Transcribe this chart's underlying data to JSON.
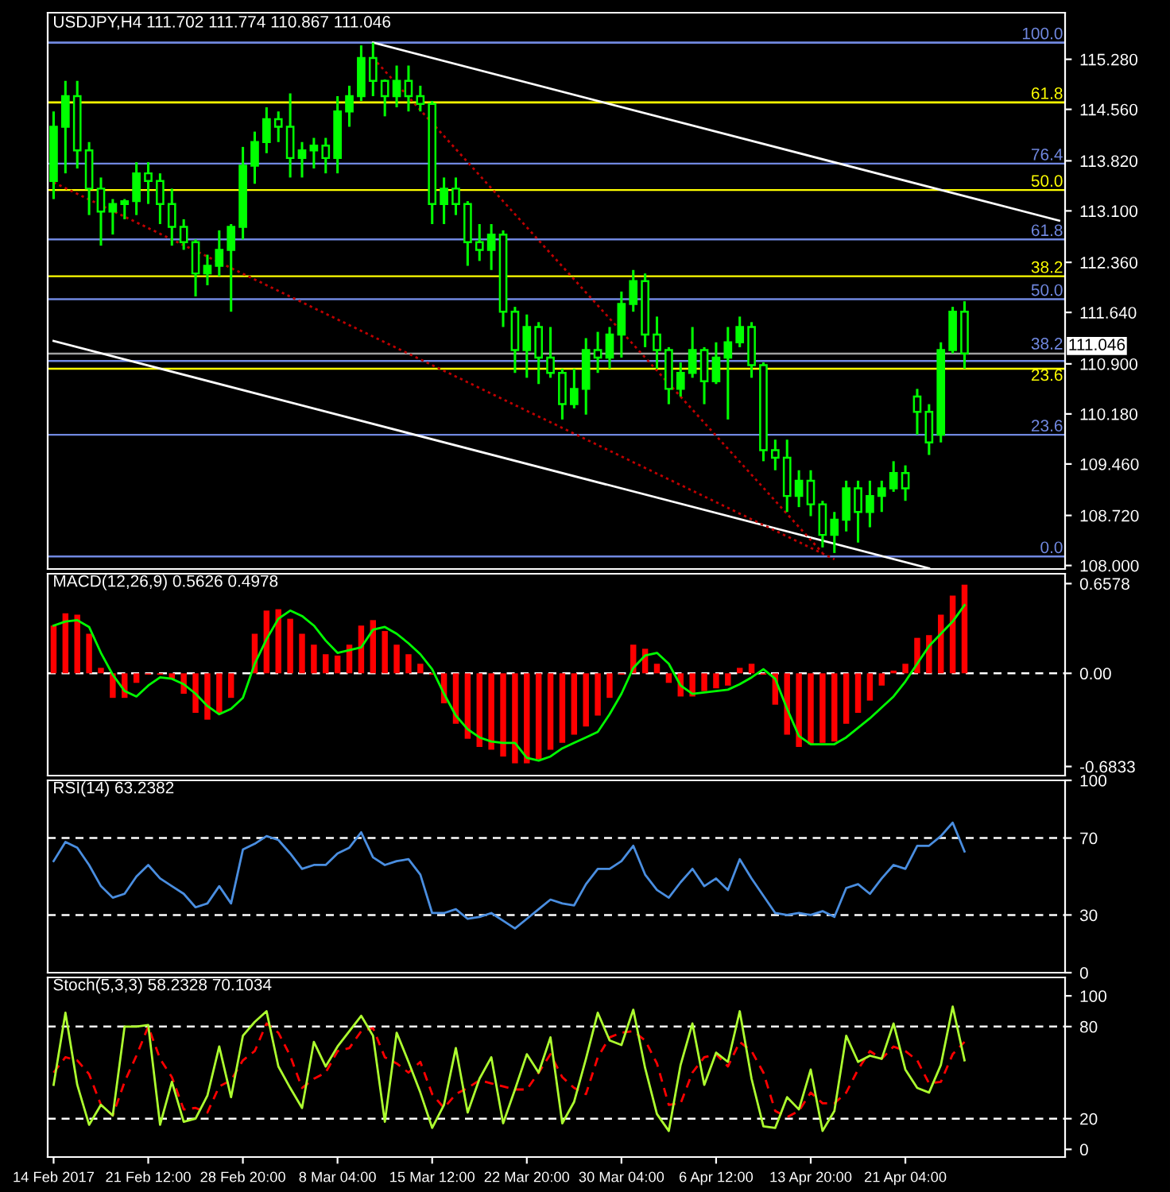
{
  "chart_data": [
    {
      "type": "candlestick",
      "title": "USDJPY,H4 111.702 111.774 110.867 111.046",
      "color": "#00ff00",
      "tick_labels": "y",
      "categories": [
        null,
        null,
        null,
        null,
        null,
        null,
        null,
        null,
        null,
        null,
        null,
        null,
        null,
        null,
        null,
        null,
        null,
        null,
        null,
        null,
        null,
        null,
        null,
        null,
        null,
        null,
        null,
        null,
        null,
        null,
        null,
        null,
        null,
        null,
        null,
        null,
        null,
        null,
        null,
        null,
        null,
        null,
        null,
        null,
        null,
        null,
        null,
        null,
        null,
        null,
        null,
        null,
        null,
        null,
        null,
        null,
        null,
        null,
        null,
        null,
        null,
        null,
        null,
        null,
        null,
        null,
        null,
        null,
        null,
        null,
        null,
        null,
        null,
        null,
        null,
        null,
        null,
        null,
        null,
        null,
        null,
        null,
        null,
        null,
        null,
        null
      ],
      "ohlc": [
        [
          113.53,
          114.53,
          113.27,
          114.31
        ],
        [
          114.31,
          114.97,
          113.64,
          114.75
        ],
        [
          114.75,
          114.97,
          113.71,
          113.97
        ],
        [
          113.97,
          114.09,
          113.04,
          113.42
        ],
        [
          113.42,
          113.58,
          112.6,
          113.09
        ],
        [
          113.09,
          113.27,
          112.76,
          113.2
        ],
        [
          113.2,
          113.27,
          112.98,
          113.24
        ],
        [
          113.24,
          113.8,
          113.04,
          113.64
        ],
        [
          113.64,
          113.8,
          113.2,
          113.53
        ],
        [
          113.53,
          113.64,
          112.91,
          113.2
        ],
        [
          113.2,
          113.42,
          112.6,
          112.87
        ],
        [
          112.87,
          112.98,
          112.54,
          112.65
        ],
        [
          112.65,
          112.69,
          111.87,
          112.2
        ],
        [
          112.2,
          112.47,
          112.03,
          112.31
        ],
        [
          112.31,
          112.82,
          112.16,
          112.54
        ],
        [
          112.54,
          112.91,
          111.65,
          112.87
        ],
        [
          112.87,
          114.02,
          112.69,
          113.75
        ],
        [
          113.75,
          114.24,
          113.49,
          114.09
        ],
        [
          114.09,
          114.59,
          113.93,
          114.42
        ],
        [
          114.42,
          114.53,
          114.09,
          114.31
        ],
        [
          114.31,
          114.79,
          113.58,
          113.86
        ],
        [
          113.86,
          114.09,
          113.58,
          113.97
        ],
        [
          113.97,
          114.15,
          113.71,
          114.04
        ],
        [
          114.04,
          114.15,
          113.64,
          113.86
        ],
        [
          113.86,
          114.75,
          113.64,
          114.53
        ],
        [
          114.53,
          114.9,
          114.31,
          114.75
        ],
        [
          114.75,
          115.48,
          114.68,
          115.3
        ],
        [
          115.3,
          115.52,
          114.75,
          114.97
        ],
        [
          114.97,
          114.99,
          114.46,
          114.75
        ],
        [
          114.75,
          115.19,
          114.59,
          114.97
        ],
        [
          114.97,
          115.19,
          114.53,
          114.75
        ],
        [
          114.75,
          114.9,
          114.53,
          114.64
        ],
        [
          114.64,
          114.68,
          112.91,
          113.2
        ],
        [
          113.2,
          113.58,
          112.91,
          113.42
        ],
        [
          113.42,
          113.58,
          113.04,
          113.2
        ],
        [
          113.2,
          113.24,
          112.31,
          112.65
        ],
        [
          112.65,
          112.91,
          112.38,
          112.54
        ],
        [
          112.54,
          112.91,
          112.25,
          112.76
        ],
        [
          112.76,
          112.82,
          111.43,
          111.65
        ],
        [
          111.65,
          111.72,
          110.77,
          111.1
        ],
        [
          111.1,
          111.61,
          110.7,
          111.43
        ],
        [
          111.43,
          111.5,
          110.61,
          110.99
        ],
        [
          110.99,
          111.43,
          110.7,
          110.77
        ],
        [
          110.77,
          110.83,
          110.1,
          110.32
        ],
        [
          110.32,
          110.83,
          110.26,
          110.54
        ],
        [
          110.54,
          111.27,
          110.17,
          111.1
        ],
        [
          111.1,
          111.36,
          110.77,
          110.99
        ],
        [
          110.99,
          111.43,
          110.83,
          111.32
        ],
        [
          111.32,
          111.94,
          110.99,
          111.76
        ],
        [
          111.76,
          112.25,
          111.65,
          112.09
        ],
        [
          112.09,
          112.2,
          111.14,
          111.32
        ],
        [
          111.32,
          111.58,
          110.83,
          111.1
        ],
        [
          111.1,
          111.14,
          110.32,
          110.54
        ],
        [
          110.54,
          110.92,
          110.43,
          110.77
        ],
        [
          110.77,
          111.43,
          110.7,
          111.1
        ],
        [
          111.1,
          111.14,
          110.32,
          110.65
        ],
        [
          110.65,
          111.21,
          110.61,
          110.99
        ],
        [
          110.99,
          111.43,
          110.1,
          111.21
        ],
        [
          111.21,
          111.58,
          111.14,
          111.43
        ],
        [
          111.43,
          111.5,
          110.7,
          110.88
        ],
        [
          110.88,
          110.92,
          109.5,
          109.66
        ],
        [
          109.66,
          109.81,
          109.37,
          109.55
        ],
        [
          109.55,
          109.81,
          108.77,
          109.0
        ],
        [
          109.0,
          109.37,
          108.84,
          109.22
        ],
        [
          109.22,
          109.37,
          108.71,
          108.88
        ],
        [
          108.88,
          108.93,
          108.26,
          108.44
        ],
        [
          108.44,
          108.77,
          108.18,
          108.66
        ],
        [
          108.66,
          109.22,
          108.49,
          109.11
        ],
        [
          109.11,
          109.22,
          108.33,
          108.77
        ],
        [
          108.77,
          109.22,
          108.55,
          109.0
        ],
        [
          109.0,
          109.22,
          108.77,
          109.11
        ],
        [
          109.11,
          109.5,
          109.06,
          109.33
        ],
        [
          109.33,
          109.44,
          108.93,
          109.11
        ],
        [
          110.43,
          110.54,
          109.88,
          110.21
        ],
        [
          110.21,
          110.32,
          109.59,
          109.77
        ],
        [
          109.88,
          111.21,
          109.77,
          111.1
        ],
        [
          111.1,
          111.72,
          111.05,
          111.65
        ],
        [
          111.65,
          111.8,
          110.83,
          111.05
        ],
        null,
        null,
        null,
        null,
        null,
        null,
        null,
        null
      ],
      "series": [
        {
          "type": "line",
          "color": "#ffffff",
          "line_style": "solid",
          "values": [
            null,
            null,
            null,
            null,
            null,
            null,
            null,
            null,
            null,
            null,
            null,
            null,
            null,
            null,
            null,
            null,
            null,
            null,
            null,
            null,
            null,
            null,
            null,
            null,
            null,
            null,
            null,
            115.52,
            null,
            null,
            null,
            null,
            null,
            null,
            null,
            null,
            null,
            null,
            null,
            null,
            null,
            null,
            null,
            null,
            null,
            null,
            null,
            null,
            null,
            null,
            null,
            null,
            null,
            null,
            null,
            null,
            null,
            null,
            null,
            null,
            null,
            null,
            null,
            null,
            null,
            null,
            null,
            null,
            null,
            null,
            null,
            null,
            null,
            null,
            null,
            null,
            null,
            null,
            null,
            null,
            null,
            null,
            null,
            null,
            null,
            112.96
          ]
        },
        {
          "type": "line",
          "color": "#ffffff",
          "line_style": "solid",
          "values": [
            111.23,
            null,
            null,
            null,
            null,
            null,
            null,
            null,
            null,
            null,
            null,
            null,
            null,
            null,
            null,
            null,
            null,
            null,
            null,
            null,
            null,
            null,
            null,
            null,
            null,
            null,
            null,
            null,
            null,
            null,
            null,
            null,
            null,
            null,
            null,
            null,
            null,
            null,
            null,
            null,
            null,
            null,
            null,
            null,
            null,
            null,
            null,
            null,
            null,
            null,
            null,
            null,
            null,
            null,
            null,
            null,
            null,
            null,
            null,
            null,
            null,
            null,
            null,
            null,
            null,
            null,
            null,
            null,
            null,
            null,
            null,
            null,
            null,
            null,
            107.96,
            null,
            null,
            null,
            null,
            null,
            null,
            null,
            null,
            null,
            null,
            null
          ]
        },
        {
          "type": "line",
          "color": "#c00000",
          "line_style": "dotted",
          "values": [
            113.51,
            null,
            null,
            null,
            null,
            null,
            null,
            null,
            null,
            null,
            null,
            null,
            null,
            null,
            null,
            null,
            null,
            null,
            null,
            null,
            null,
            null,
            null,
            null,
            null,
            null,
            null,
            null,
            null,
            null,
            null,
            null,
            null,
            null,
            null,
            null,
            null,
            null,
            null,
            null,
            null,
            null,
            null,
            null,
            null,
            null,
            null,
            null,
            null,
            null,
            null,
            null,
            null,
            null,
            null,
            null,
            null,
            null,
            null,
            null,
            null,
            null,
            null,
            null,
            null,
            null,
            108.09,
            null,
            null,
            null,
            null,
            null,
            null,
            null,
            null,
            null,
            null,
            null,
            null,
            null,
            null,
            null,
            null,
            null,
            null,
            null
          ]
        },
        {
          "type": "line",
          "color": "#c00000",
          "line_style": "dotted",
          "values": [
            null,
            null,
            null,
            null,
            null,
            null,
            null,
            null,
            null,
            null,
            null,
            null,
            null,
            null,
            null,
            null,
            null,
            null,
            null,
            null,
            null,
            null,
            null,
            null,
            null,
            null,
            null,
            115.3,
            null,
            null,
            null,
            null,
            null,
            null,
            null,
            null,
            null,
            null,
            null,
            null,
            null,
            null,
            null,
            null,
            null,
            null,
            null,
            null,
            null,
            null,
            null,
            null,
            null,
            null,
            null,
            null,
            null,
            null,
            null,
            null,
            null,
            null,
            null,
            null,
            null,
            108.18,
            null,
            null,
            null,
            null,
            null,
            null,
            null,
            null,
            null,
            null,
            null,
            null,
            null,
            null,
            null,
            null,
            null,
            null,
            null,
            null
          ]
        }
      ],
      "ylim": [
        107.95,
        115.95
      ],
      "yticks": [
        {
          "value": 115.28,
          "label": "115.280"
        },
        {
          "value": 114.56,
          "label": "114.560"
        },
        {
          "value": 113.82,
          "label": "113.820"
        },
        {
          "value": 113.1,
          "label": "113.100"
        },
        {
          "value": 112.36,
          "label": "112.360"
        },
        {
          "value": 111.64,
          "label": "111.640"
        },
        {
          "value": 110.9,
          "label": "110.900"
        },
        {
          "value": 110.18,
          "label": "110.180"
        },
        {
          "value": 109.46,
          "label": "109.460"
        },
        {
          "value": 108.72,
          "label": "108.720"
        },
        {
          "value": 108.0,
          "label": "108.000"
        }
      ],
      "ref_lines": [
        {
          "axis": "y",
          "value": 115.52,
          "color": "#7088e0"
        },
        {
          "axis": "y",
          "value": 114.66,
          "color": "#ffff00"
        },
        {
          "axis": "y",
          "value": 113.78,
          "color": "#7088e0"
        },
        {
          "axis": "y",
          "value": 113.4,
          "color": "#ffff00"
        },
        {
          "axis": "y",
          "value": 112.69,
          "color": "#7088e0"
        },
        {
          "axis": "y",
          "value": 112.16,
          "color": "#ffff00"
        },
        {
          "axis": "y",
          "value": 111.83,
          "color": "#7088e0"
        },
        {
          "axis": "y",
          "value": 110.94,
          "color": "#7088e0"
        },
        {
          "axis": "y",
          "value": 110.83,
          "color": "#ffff00"
        },
        {
          "axis": "y",
          "value": 109.88,
          "color": "#7088e0"
        },
        {
          "axis": "y",
          "value": 108.13,
          "color": "#7088e0"
        },
        {
          "axis": "y",
          "value": 111.046,
          "label": "111.046",
          "color": "#a0a0a0"
        }
      ],
      "annotations": [
        {
          "text": "100.0",
          "y": 115.52
        },
        {
          "text": "61.8",
          "y": 114.66
        },
        {
          "text": "76.4",
          "y": 113.78
        },
        {
          "text": "50.0",
          "y": 113.4
        },
        {
          "text": "61.8",
          "y": 112.69
        },
        {
          "text": "38.2",
          "y": 112.16
        },
        {
          "text": "50.0",
          "y": 111.83
        },
        {
          "text": "38.2",
          "y": 110.94
        },
        {
          "text": "23.6",
          "y": 110.83
        },
        {
          "text": "23.6",
          "y": 109.88
        },
        {
          "text": "0.0",
          "y": 108.13
        }
      ]
    },
    {
      "type": "bar",
      "title": "MACD(12,26,9) 0.5626 0.4978",
      "tick_labels": "y",
      "categories": [
        null,
        null,
        null,
        null,
        null,
        null,
        null,
        null,
        null,
        null,
        null,
        null,
        null,
        null,
        null,
        null,
        null,
        null,
        null,
        null,
        null,
        null,
        null,
        null,
        null,
        null,
        null,
        null,
        null,
        null,
        null,
        null,
        null,
        null,
        null,
        null,
        null,
        null,
        null,
        null,
        null,
        null,
        null,
        null,
        null,
        null,
        null,
        null,
        null,
        null,
        null,
        null,
        null,
        null,
        null,
        null,
        null,
        null,
        null,
        null,
        null,
        null,
        null,
        null,
        null,
        null,
        null,
        null,
        null,
        null,
        null,
        null,
        null,
        null,
        null,
        null,
        null,
        null,
        null,
        null,
        null,
        null,
        null,
        null,
        null,
        null
      ],
      "series": [
        {
          "type": "bar",
          "color": "#ff0000",
          "values": [
            0.35,
            0.44,
            0.43,
            0.29,
            0.04,
            -0.18,
            -0.18,
            -0.07,
            -0.01,
            -0.01,
            -0.04,
            -0.15,
            -0.29,
            -0.34,
            -0.29,
            -0.18,
            0.0,
            0.29,
            0.46,
            0.47,
            0.4,
            0.29,
            0.21,
            0.14,
            0.13,
            0.21,
            0.35,
            0.39,
            0.31,
            0.21,
            0.14,
            0.07,
            -0.01,
            -0.22,
            -0.37,
            -0.48,
            -0.54,
            -0.56,
            -0.61,
            -0.66,
            -0.66,
            -0.63,
            -0.56,
            -0.51,
            -0.45,
            -0.39,
            -0.31,
            -0.18,
            -0.01,
            0.21,
            0.18,
            0.07,
            -0.07,
            -0.17,
            -0.17,
            -0.13,
            -0.11,
            -0.09,
            0.04,
            0.07,
            -0.01,
            -0.23,
            -0.45,
            -0.54,
            -0.52,
            -0.51,
            -0.5,
            -0.37,
            -0.29,
            -0.2,
            -0.09,
            0.02,
            0.07,
            0.26,
            0.28,
            0.43,
            0.57,
            0.65,
            null,
            null,
            null,
            null,
            null,
            null,
            null,
            null
          ]
        },
        {
          "type": "line",
          "color": "#00ff00",
          "line_style": "solid",
          "values": [
            0.35,
            0.38,
            0.39,
            0.34,
            0.15,
            -0.01,
            -0.13,
            -0.17,
            -0.09,
            -0.03,
            -0.04,
            -0.08,
            -0.15,
            -0.24,
            -0.3,
            -0.26,
            -0.18,
            0.07,
            0.25,
            0.4,
            0.46,
            0.42,
            0.35,
            0.24,
            0.15,
            0.17,
            0.19,
            0.32,
            0.34,
            0.29,
            0.22,
            0.14,
            0.03,
            -0.15,
            -0.31,
            -0.41,
            -0.47,
            -0.5,
            -0.51,
            -0.51,
            -0.62,
            -0.64,
            -0.61,
            -0.55,
            -0.51,
            -0.47,
            -0.43,
            -0.3,
            -0.15,
            0.04,
            0.13,
            0.15,
            0.07,
            -0.09,
            -0.15,
            -0.14,
            -0.13,
            -0.12,
            -0.08,
            -0.03,
            0.03,
            -0.04,
            -0.26,
            -0.46,
            -0.52,
            -0.52,
            -0.52,
            -0.47,
            -0.4,
            -0.33,
            -0.25,
            -0.17,
            -0.06,
            0.07,
            0.2,
            0.29,
            0.38,
            0.5,
            null,
            null,
            null,
            null,
            null,
            null,
            null,
            null
          ]
        }
      ],
      "ylim": [
        -0.75,
        0.73
      ],
      "yticks": [
        0.6578,
        {
          "value": 0,
          "label": "0.00"
        },
        -0.6833
      ],
      "ref_lines": [
        {
          "axis": "y",
          "value": 0,
          "color": "#ffffff",
          "line_style": "dashed"
        }
      ]
    },
    {
      "type": "line",
      "title": "RSI(14) 63.2382",
      "tick_labels": "y",
      "categories": [
        null,
        null,
        null,
        null,
        null,
        null,
        null,
        null,
        null,
        null,
        null,
        null,
        null,
        null,
        null,
        null,
        null,
        null,
        null,
        null,
        null,
        null,
        null,
        null,
        null,
        null,
        null,
        null,
        null,
        null,
        null,
        null,
        null,
        null,
        null,
        null,
        null,
        null,
        null,
        null,
        null,
        null,
        null,
        null,
        null,
        null,
        null,
        null,
        null,
        null,
        null,
        null,
        null,
        null,
        null,
        null,
        null,
        null,
        null,
        null,
        null,
        null,
        null,
        null,
        null,
        null,
        null,
        null,
        null,
        null,
        null,
        null,
        null,
        null,
        null,
        null,
        null,
        null,
        null,
        null,
        null,
        null,
        null,
        null,
        null,
        null
      ],
      "series": [
        {
          "color": "#4a8ee0",
          "line_style": "solid",
          "values": [
            58,
            68,
            65,
            56,
            45,
            39,
            41,
            50,
            56,
            49,
            45,
            41,
            34,
            36,
            45,
            36,
            64,
            67,
            71,
            69,
            62,
            54,
            56,
            56,
            62,
            65,
            73,
            60,
            56,
            58,
            59,
            51,
            31,
            31,
            33,
            28,
            29,
            31,
            27,
            23,
            28,
            33,
            38,
            36,
            35,
            46,
            54,
            54,
            58,
            66,
            51,
            43,
            39,
            47,
            54,
            45,
            49,
            43,
            59,
            49,
            40,
            31,
            30,
            31,
            30,
            32,
            29,
            44,
            46,
            41,
            49,
            56,
            54,
            66,
            66,
            71,
            78,
            63,
            null,
            null,
            null,
            null,
            null,
            null,
            null,
            null
          ]
        }
      ],
      "ylim": [
        0,
        100
      ],
      "yticks": [
        100,
        70,
        30,
        0
      ],
      "ref_lines": [
        {
          "axis": "y",
          "value": 70,
          "color": "#ffffff",
          "line_style": "dashed"
        },
        {
          "axis": "y",
          "value": 30,
          "color": "#ffffff",
          "line_style": "dashed"
        }
      ]
    },
    {
      "type": "line",
      "title": "Stoch(5,3,3) 58.2328 70.1034",
      "categories": [
        "14 Feb 2017",
        null,
        null,
        null,
        null,
        null,
        null,
        null,
        "21 Feb 12:00",
        null,
        null,
        null,
        null,
        null,
        null,
        null,
        "28 Feb 20:00",
        null,
        null,
        null,
        null,
        null,
        null,
        null,
        "8 Mar 04:00",
        null,
        null,
        null,
        null,
        null,
        null,
        null,
        "15 Mar 12:00",
        null,
        null,
        null,
        null,
        null,
        null,
        null,
        "22 Mar 20:00",
        null,
        null,
        null,
        null,
        null,
        null,
        null,
        "30 Mar 04:00",
        null,
        null,
        null,
        null,
        null,
        null,
        null,
        "6 Apr 12:00",
        null,
        null,
        null,
        null,
        null,
        null,
        null,
        "13 Apr 20:00",
        null,
        null,
        null,
        null,
        null,
        null,
        null,
        "21 Apr 04:00",
        null,
        null,
        null,
        null,
        null,
        null,
        null,
        null,
        null,
        null,
        null,
        null,
        null
      ],
      "series": [
        {
          "color": "#ff0000",
          "line_style": "dashed",
          "values": [
            50,
            60,
            58,
            49,
            29,
            22,
            44,
            61,
            80,
            59,
            47,
            26,
            27,
            24,
            41,
            45,
            58,
            64,
            82,
            76,
            61,
            40,
            46,
            50,
            64,
            66,
            77,
            79,
            60,
            56,
            50,
            57,
            36,
            27,
            36,
            40,
            45,
            43,
            41,
            39,
            39,
            50,
            62,
            47,
            40,
            36,
            60,
            73,
            76,
            77,
            71,
            56,
            29,
            30,
            50,
            60,
            62,
            54,
            70,
            64,
            50,
            25,
            21,
            25,
            37,
            30,
            30,
            37,
            52,
            64,
            59,
            67,
            64,
            58,
            43,
            44,
            62,
            70,
            null,
            null,
            null,
            null,
            null,
            null,
            null,
            null
          ]
        },
        {
          "color": "#adff2f",
          "line_style": "solid",
          "values": [
            42,
            89,
            42,
            16,
            29,
            22,
            80,
            80,
            81,
            16,
            44,
            18,
            20,
            35,
            67,
            34,
            74,
            83,
            90,
            54,
            40,
            27,
            70,
            54,
            67,
            77,
            87,
            74,
            18,
            76,
            57,
            37,
            14,
            29,
            66,
            24,
            46,
            60,
            17,
            39,
            62,
            50,
            73,
            17,
            31,
            59,
            89,
            71,
            68,
            91,
            53,
            23,
            12,
            55,
            82,
            42,
            63,
            57,
            90,
            46,
            15,
            14,
            34,
            26,
            52,
            12,
            25,
            74,
            57,
            61,
            59,
            82,
            52,
            40,
            37,
            55,
            93,
            58,
            null,
            null,
            null,
            null,
            null,
            null,
            null,
            null
          ]
        }
      ],
      "ylim": [
        -5,
        112
      ],
      "yticks": [
        100,
        80,
        20,
        0
      ],
      "ref_lines": [
        {
          "axis": "y",
          "value": 80,
          "color": "#ffffff",
          "line_style": "dashed"
        },
        {
          "axis": "y",
          "value": 20,
          "color": "#ffffff",
          "line_style": "dashed"
        }
      ]
    }
  ]
}
